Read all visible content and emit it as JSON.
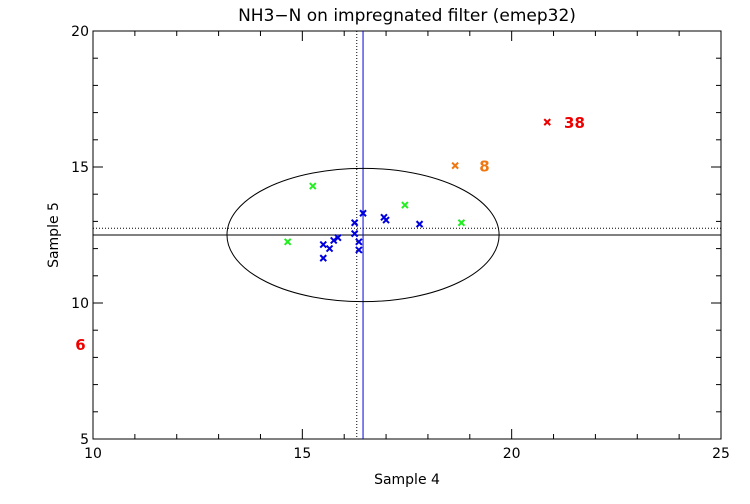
{
  "chart_data": {
    "type": "scatter",
    "title": "NH3−N on impregnated filter (emep32)",
    "xlabel": "Sample 4",
    "ylabel": "Sample 5",
    "xlim": [
      10,
      25
    ],
    "ylim": [
      5,
      20
    ],
    "xticks": [
      "10",
      "15",
      "20",
      "25"
    ],
    "yticks": [
      "5",
      "10",
      "15",
      "20"
    ],
    "grid": false,
    "reference": {
      "median_x": 16.45,
      "median_y": 12.5,
      "assigned_x": 16.3,
      "assigned_y": 12.75,
      "ellipse_center": [
        16.45,
        12.5
      ],
      "ellipse_radii": [
        3.25,
        2.45
      ]
    },
    "series": [
      {
        "color": "#0000dd",
        "points": [
          [
            15.5,
            11.65
          ],
          [
            15.5,
            12.15
          ],
          [
            15.65,
            12.0
          ],
          [
            15.75,
            12.3
          ],
          [
            15.85,
            12.4
          ],
          [
            16.25,
            12.95
          ],
          [
            16.25,
            12.55
          ],
          [
            16.35,
            11.95
          ],
          [
            16.35,
            12.25
          ],
          [
            16.45,
            13.3
          ],
          [
            16.95,
            13.15
          ],
          [
            17.0,
            13.05
          ],
          [
            17.8,
            12.9
          ]
        ]
      },
      {
        "color": "#22ee22",
        "points": [
          [
            14.65,
            12.25
          ],
          [
            15.25,
            14.3
          ],
          [
            17.45,
            13.6
          ],
          [
            18.8,
            12.95
          ]
        ]
      },
      {
        "color": "#ee7711",
        "points": [
          [
            18.65,
            15.05
          ]
        ]
      },
      {
        "color": "#ee0000",
        "points": [
          [
            20.85,
            16.65
          ]
        ]
      }
    ],
    "annotations": [
      {
        "text": "38",
        "x": 21.5,
        "y": 16.65,
        "color": "#ee0000"
      },
      {
        "text": "8",
        "x": 19.35,
        "y": 15.05,
        "color": "#ee7711"
      },
      {
        "text": "6",
        "x": 9.7,
        "y": 8.5,
        "color": "#ee0000"
      }
    ]
  }
}
